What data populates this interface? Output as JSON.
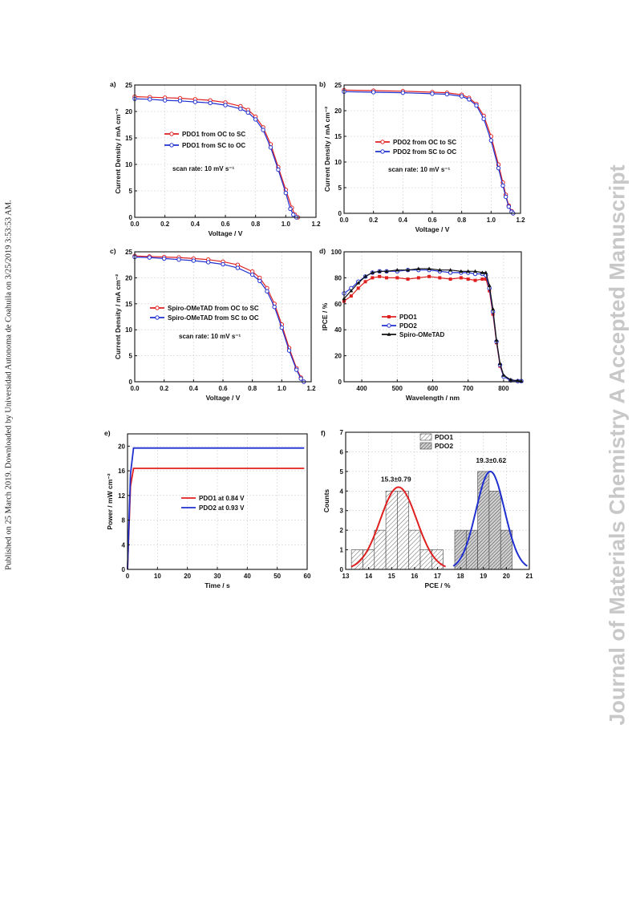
{
  "side_left": "Published on 25 March 2019. Downloaded by Universidad Autonoma de Coahuila on 3/25/2019 3:53:53 AM.",
  "side_right": "Journal of Materials Chemistry A Accepted Manuscript",
  "chart_data": [
    {
      "id": "a",
      "type": "line",
      "panel_label": "a)",
      "xlabel": "Voltage / V",
      "ylabel": "Current Density / mA cm⁻²",
      "xlim": [
        0,
        1.2
      ],
      "ylim": [
        0,
        25
      ],
      "xticks": [
        "0.0",
        "0.2",
        "0.4",
        "0.6",
        "0.8",
        "1.0",
        "1.2"
      ],
      "yticks": [
        "0",
        "5",
        "10",
        "15",
        "20",
        "25"
      ],
      "grid": true,
      "legend_position": "center-left",
      "annotation": "scan rate: 10 mV s⁻¹",
      "series": [
        {
          "name": "PDO1 from OC to SC",
          "color": "#e02020",
          "marker": "circle",
          "x": [
            0,
            0.1,
            0.2,
            0.3,
            0.4,
            0.5,
            0.6,
            0.7,
            0.75,
            0.8,
            0.85,
            0.9,
            0.95,
            1.0,
            1.04,
            1.06,
            1.08
          ],
          "y": [
            22.8,
            22.7,
            22.6,
            22.5,
            22.3,
            22.1,
            21.7,
            21.0,
            20.3,
            19.0,
            17.0,
            13.8,
            9.5,
            5.2,
            1.8,
            0.5,
            0
          ]
        },
        {
          "name": "PDO1 from SC to OC",
          "color": "#2030d0",
          "marker": "circle",
          "x": [
            0,
            0.1,
            0.2,
            0.3,
            0.4,
            0.5,
            0.6,
            0.7,
            0.75,
            0.8,
            0.85,
            0.9,
            0.95,
            1.0,
            1.03,
            1.05,
            1.07
          ],
          "y": [
            22.4,
            22.3,
            22.1,
            22.0,
            21.8,
            21.6,
            21.2,
            20.5,
            19.8,
            18.5,
            16.5,
            13.2,
            9.0,
            4.6,
            1.6,
            0.5,
            0
          ]
        }
      ]
    },
    {
      "id": "b",
      "type": "line",
      "panel_label": "b)",
      "xlabel": "Voltage / V",
      "ylabel": "Current Density / mA cm⁻²",
      "xlim": [
        0,
        1.2
      ],
      "ylim": [
        0,
        25
      ],
      "xticks": [
        "0.0",
        "0.2",
        "0.4",
        "0.6",
        "0.8",
        "1.0",
        "1.2"
      ],
      "yticks": [
        "0",
        "5",
        "10",
        "15",
        "20",
        "25"
      ],
      "grid": true,
      "legend_position": "center",
      "annotation": "scan rate: 10 mV s⁻¹",
      "series": [
        {
          "name": "PDO2 from OC to SC",
          "color": "#e02020",
          "marker": "circle",
          "x": [
            0,
            0.2,
            0.4,
            0.6,
            0.7,
            0.8,
            0.85,
            0.9,
            0.95,
            1.0,
            1.05,
            1.08,
            1.1,
            1.12,
            1.14,
            1.15
          ],
          "y": [
            24.0,
            23.9,
            23.8,
            23.6,
            23.5,
            23.1,
            22.5,
            21.3,
            19.0,
            15.0,
            9.5,
            6.0,
            3.6,
            1.5,
            0.4,
            0
          ]
        },
        {
          "name": "PDO2 from SC to OC",
          "color": "#2030d0",
          "marker": "circle",
          "x": [
            0,
            0.2,
            0.4,
            0.6,
            0.7,
            0.8,
            0.85,
            0.9,
            0.95,
            1.0,
            1.05,
            1.08,
            1.1,
            1.12,
            1.14,
            1.15
          ],
          "y": [
            23.7,
            23.6,
            23.5,
            23.3,
            23.2,
            22.8,
            22.2,
            21.0,
            18.4,
            14.2,
            8.8,
            5.4,
            3.2,
            1.3,
            0.3,
            0
          ]
        }
      ]
    },
    {
      "id": "c",
      "type": "line",
      "panel_label": "c)",
      "xlabel": "Voltage / V",
      "ylabel": "Current Density / mA cm⁻²",
      "xlim": [
        0,
        1.2
      ],
      "ylim": [
        0,
        25
      ],
      "xticks": [
        "0.0",
        "0.2",
        "0.4",
        "0.6",
        "0.8",
        "1.0",
        "1.2"
      ],
      "yticks": [
        "0",
        "5",
        "10",
        "15",
        "20",
        "25"
      ],
      "grid": true,
      "legend_position": "center-left",
      "annotation": "scan rate: 10 mV s⁻¹",
      "series": [
        {
          "name": "Spiro-OMeTAD from OC to SC",
          "color": "#e02020",
          "marker": "circle",
          "x": [
            0,
            0.1,
            0.2,
            0.3,
            0.4,
            0.5,
            0.6,
            0.7,
            0.8,
            0.85,
            0.9,
            0.95,
            1.0,
            1.05,
            1.1,
            1.13,
            1.15
          ],
          "y": [
            24.2,
            24.1,
            24.0,
            23.9,
            23.7,
            23.5,
            23.1,
            22.5,
            21.2,
            20.0,
            18.0,
            15.0,
            11.0,
            6.5,
            2.6,
            0.8,
            0
          ]
        },
        {
          "name": "Spiro-OMeTAD from SC to OC",
          "color": "#2030d0",
          "marker": "circle",
          "x": [
            0,
            0.1,
            0.2,
            0.3,
            0.4,
            0.5,
            0.6,
            0.7,
            0.8,
            0.85,
            0.9,
            0.95,
            1.0,
            1.05,
            1.1,
            1.13,
            1.15
          ],
          "y": [
            24.0,
            23.9,
            23.7,
            23.5,
            23.3,
            23.0,
            22.6,
            21.9,
            20.6,
            19.4,
            17.4,
            14.4,
            10.4,
            6.0,
            2.3,
            0.6,
            0
          ]
        }
      ]
    },
    {
      "id": "d",
      "type": "line",
      "panel_label": "d)",
      "xlabel": "Wavelength / nm",
      "ylabel": "IPCE / %",
      "xlim": [
        350,
        850
      ],
      "ylim": [
        0,
        100
      ],
      "xticks": [
        "400",
        "500",
        "600",
        "700",
        "800"
      ],
      "yticks": [
        "0",
        "20",
        "40",
        "60",
        "80",
        "100"
      ],
      "grid": true,
      "legend_position": "center-left",
      "series": [
        {
          "name": "PDO1",
          "color": "#e02020",
          "marker": "square",
          "x": [
            350,
            370,
            390,
            410,
            430,
            450,
            470,
            500,
            530,
            560,
            590,
            620,
            650,
            680,
            700,
            720,
            740,
            750,
            760,
            770,
            780,
            790,
            800,
            820,
            840,
            850
          ],
          "y": [
            62,
            66,
            72,
            77,
            80,
            81,
            80,
            80,
            79,
            80,
            81,
            80,
            79,
            80,
            79,
            78,
            79,
            79,
            70,
            52,
            30,
            12,
            4,
            1,
            0.5,
            0.5
          ]
        },
        {
          "name": "PDO2",
          "color": "#2030d0",
          "marker": "circle",
          "x": [
            350,
            370,
            390,
            410,
            430,
            450,
            470,
            500,
            530,
            560,
            590,
            620,
            650,
            680,
            700,
            720,
            740,
            750,
            760,
            770,
            780,
            790,
            800,
            820,
            840,
            850
          ],
          "y": [
            68,
            72,
            77,
            81,
            84,
            85,
            85,
            85,
            86,
            86,
            86,
            85,
            84,
            84,
            84,
            83,
            83,
            82,
            72,
            54,
            31,
            13,
            4,
            1,
            0.5,
            0.5
          ]
        },
        {
          "name": "Spiro-OMeTAD",
          "color": "#111111",
          "marker": "triangle",
          "x": [
            350,
            370,
            390,
            410,
            430,
            450,
            470,
            500,
            530,
            560,
            590,
            620,
            650,
            680,
            700,
            720,
            740,
            750,
            760,
            770,
            780,
            790,
            800,
            820,
            840,
            850
          ],
          "y": [
            64,
            70,
            76,
            81,
            84,
            85,
            85,
            86,
            86,
            87,
            87,
            86,
            86,
            85,
            85,
            85,
            84,
            84,
            74,
            56,
            32,
            14,
            5,
            1.5,
            0.8,
            0.5
          ]
        }
      ]
    },
    {
      "id": "e",
      "type": "line",
      "panel_label": "e)",
      "xlabel": "Time / s",
      "ylabel": "Power / mW cm⁻²",
      "xlim": [
        0,
        60
      ],
      "ylim": [
        0,
        22
      ],
      "xticks": [
        "0",
        "10",
        "20",
        "30",
        "40",
        "50",
        "60"
      ],
      "yticks": [
        "0",
        "4",
        "8",
        "12",
        "16",
        "20"
      ],
      "grid": true,
      "legend_position": "center-right",
      "series": [
        {
          "name": "PDO1 at 0.84 V",
          "color": "#e02020",
          "x": [
            0,
            1,
            2,
            10,
            20,
            30,
            40,
            50,
            59
          ],
          "y": [
            0,
            13.5,
            16.4,
            16.4,
            16.4,
            16.4,
            16.4,
            16.4,
            16.4
          ]
        },
        {
          "name": "PDO2 at 0.93 V",
          "color": "#2030d0",
          "x": [
            0,
            1,
            2,
            10,
            20,
            30,
            40,
            50,
            59
          ],
          "y": [
            0,
            15.5,
            19.7,
            19.7,
            19.7,
            19.7,
            19.7,
            19.7,
            19.7
          ]
        }
      ]
    },
    {
      "id": "f",
      "type": "bar",
      "panel_label": "f)",
      "xlabel": "PCE / %",
      "ylabel": "Counts",
      "xlim": [
        13,
        21
      ],
      "ylim": [
        0,
        7
      ],
      "xticks": [
        "13",
        "14",
        "15",
        "16",
        "17",
        "18",
        "19",
        "20",
        "21"
      ],
      "yticks": [
        "0",
        "1",
        "2",
        "3",
        "4",
        "5",
        "6",
        "7"
      ],
      "grid": true,
      "legend_position": "top-center",
      "annotations": [
        "15.3±0.79",
        "19.3±0.62"
      ],
      "series": [
        {
          "name": "PDO1",
          "fit_color": "#e02020",
          "bin_width": 0.5,
          "bins": [
            13.5,
            14.0,
            14.5,
            15.0,
            15.5,
            16.0,
            16.5,
            17.0
          ],
          "counts": [
            1,
            1,
            2,
            4,
            4,
            2,
            1,
            1
          ],
          "fit_mean": 15.3,
          "fit_sigma": 0.79,
          "fit_peak": 4.2
        },
        {
          "name": "PDO2",
          "fit_color": "#2030d0",
          "bin_width": 0.5,
          "bins": [
            18.0,
            18.5,
            19.0,
            19.5,
            20.0
          ],
          "counts": [
            2,
            2,
            5,
            4,
            2
          ],
          "fit_mean": 19.3,
          "fit_sigma": 0.62,
          "fit_peak": 5.0
        }
      ]
    }
  ]
}
